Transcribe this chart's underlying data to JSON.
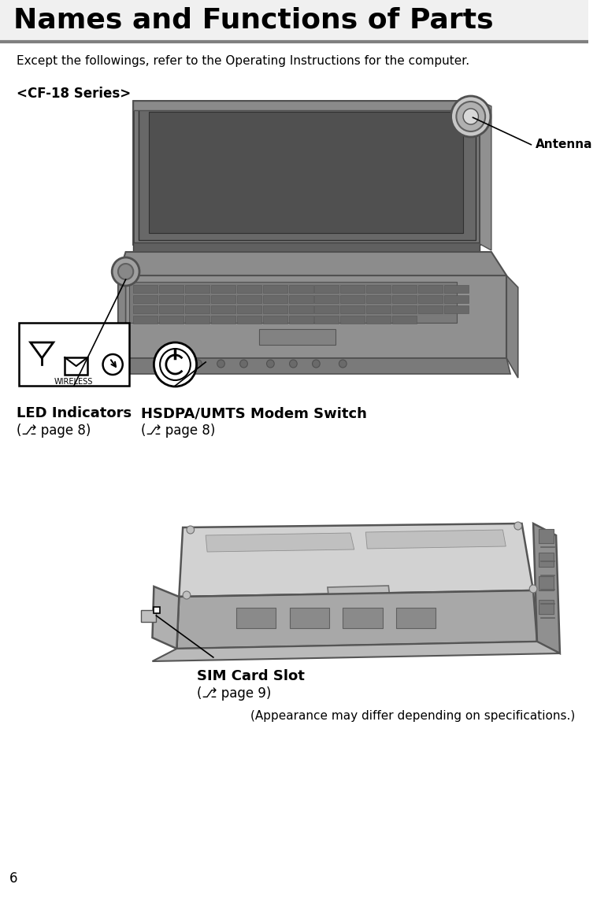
{
  "title": "Names and Functions of Parts",
  "title_fontsize": 26,
  "title_fontweight": "bold",
  "title_bg_color": "#f0f0f0",
  "separator_color": "#808080",
  "separator_linewidth": 3,
  "body_text": "Except the followings, refer to the Operating Instructions for the computer.",
  "body_text_fontsize": 11,
  "section_label": "<CF-18 Series>",
  "section_label_fontsize": 12,
  "section_label_fontweight": "bold",
  "antenna_label": "Antenna",
  "antenna_fontsize": 11,
  "antenna_fontweight": "bold",
  "led_label_line1": "LED Indicators",
  "led_label_line2": "(⎇ page 8)",
  "led_fontsize": 13,
  "led_fontweight": "bold",
  "hsdpa_label_line1": "HSDPA/UMTS Modem Switch",
  "hsdpa_label_line2": "(⎇ page 8)",
  "hsdpa_fontsize": 13,
  "hsdpa_fontweight": "bold",
  "sim_label_line1": "SIM Card Slot",
  "sim_label_line2": "(⎇ page 9)",
  "sim_fontsize": 13,
  "sim_fontweight": "bold",
  "appearance_note": "(Appearance may differ depending on specifications.)",
  "appearance_fontsize": 11,
  "page_number": "6",
  "page_number_fontsize": 12,
  "background": "#ffffff",
  "text_color": "#000000"
}
